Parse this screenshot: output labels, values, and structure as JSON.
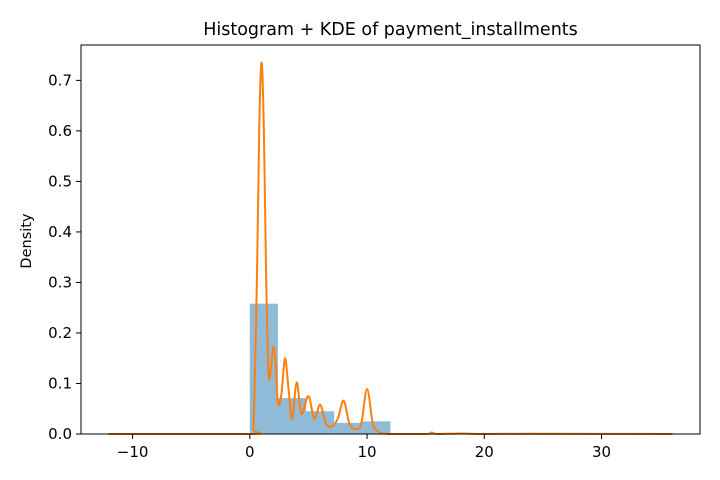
{
  "chart_data": {
    "type": "histogram+kde",
    "title": "Histogram + KDE of payment_installments",
    "xlabel": "",
    "ylabel": "Density",
    "xlim": [
      -14.4,
      38.4
    ],
    "ylim": [
      0,
      0.77
    ],
    "grid": false,
    "x_ticks": [
      -10,
      0,
      10,
      20,
      30
    ],
    "x_tick_labels": [
      "−10",
      "0",
      "10",
      "20",
      "30"
    ],
    "y_ticks": [
      0.0,
      0.1,
      0.2,
      0.3,
      0.4,
      0.5,
      0.6,
      0.7
    ],
    "y_tick_labels": [
      "0.0",
      "0.1",
      "0.2",
      "0.3",
      "0.4",
      "0.5",
      "0.6",
      "0.7"
    ],
    "histogram": {
      "bins": [
        {
          "x0": 0.0,
          "x1": 2.4,
          "density": 0.258
        },
        {
          "x0": 2.4,
          "x1": 4.8,
          "density": 0.071
        },
        {
          "x0": 4.8,
          "x1": 7.2,
          "density": 0.045
        },
        {
          "x0": 7.2,
          "x1": 9.6,
          "density": 0.022
        },
        {
          "x0": 9.6,
          "x1": 12.0,
          "density": 0.025
        },
        {
          "x0": 12.0,
          "x1": 14.4,
          "density": 0.0
        },
        {
          "x0": 14.4,
          "x1": 16.8,
          "density": 0.0008
        },
        {
          "x0": 16.8,
          "x1": 19.2,
          "density": 0.0005
        },
        {
          "x0": 19.2,
          "x1": 21.6,
          "density": 0.0003
        },
        {
          "x0": 21.6,
          "x1": 24.0,
          "density": 0.0006
        }
      ],
      "color": "#1f77b4",
      "opacity": 0.5
    },
    "kde": {
      "x": [
        -12,
        0,
        0.3,
        0.6,
        0.8,
        1.0,
        1.2,
        1.4,
        1.6,
        1.8,
        2.0,
        2.2,
        2.4,
        2.7,
        3.0,
        3.3,
        3.6,
        4.0,
        4.4,
        5.0,
        5.5,
        6.0,
        6.5,
        7.0,
        7.5,
        8.0,
        8.5,
        9.0,
        9.5,
        10.0,
        10.5,
        11.0,
        11.5,
        12.0,
        15.0,
        15.5,
        16.0,
        18.0,
        20.0,
        24.0,
        36.0
      ],
      "y": [
        0.0,
        0.0,
        0.01,
        0.3,
        0.6,
        0.735,
        0.6,
        0.3,
        0.12,
        0.13,
        0.172,
        0.14,
        0.06,
        0.08,
        0.15,
        0.09,
        0.03,
        0.102,
        0.04,
        0.075,
        0.03,
        0.058,
        0.02,
        0.015,
        0.03,
        0.066,
        0.02,
        0.01,
        0.02,
        0.089,
        0.02,
        0.004,
        0.001,
        0.0,
        0.0,
        0.003,
        0.0,
        0.001,
        0.0,
        0.0005,
        0.0
      ],
      "color": "#ff7f0e"
    }
  }
}
